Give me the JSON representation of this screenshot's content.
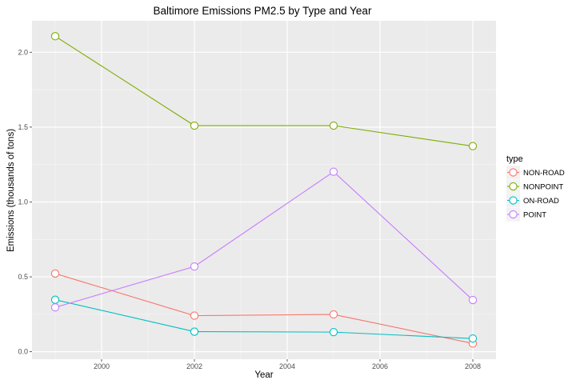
{
  "chart_data": {
    "type": "line",
    "title": "Baltimore Emissions PM2.5 by Type and Year",
    "xlabel": "Year",
    "ylabel": "Emissions (thousands of tons)",
    "legend_title": "type",
    "legend_position": "right",
    "grid": true,
    "xlim": [
      1998.5,
      2008.5
    ],
    "ylim": [
      -0.05,
      2.21
    ],
    "x_ticks": [
      2000,
      2002,
      2004,
      2006,
      2008
    ],
    "y_ticks": [
      0.0,
      0.5,
      1.0,
      1.5,
      2.0
    ],
    "x_tick_labels": [
      "2000",
      "2002",
      "2004",
      "2006",
      "2008"
    ],
    "y_tick_labels": [
      "0.0",
      "0.5",
      "1.0",
      "1.5",
      "2.0"
    ],
    "x": [
      1999,
      2002,
      2005,
      2008
    ],
    "series": [
      {
        "name": "NON-ROAD",
        "color": "#F8766D",
        "values": [
          0.522,
          0.241,
          0.249,
          0.055
        ]
      },
      {
        "name": "NONPOINT",
        "color": "#7CAE00",
        "values": [
          2.107,
          1.51,
          1.51,
          1.373
        ]
      },
      {
        "name": "ON-ROAD",
        "color": "#00BFC4",
        "values": [
          0.347,
          0.134,
          0.131,
          0.088
        ]
      },
      {
        "name": "POINT",
        "color": "#C77CFF",
        "values": [
          0.296,
          0.569,
          1.202,
          0.345
        ]
      }
    ]
  }
}
